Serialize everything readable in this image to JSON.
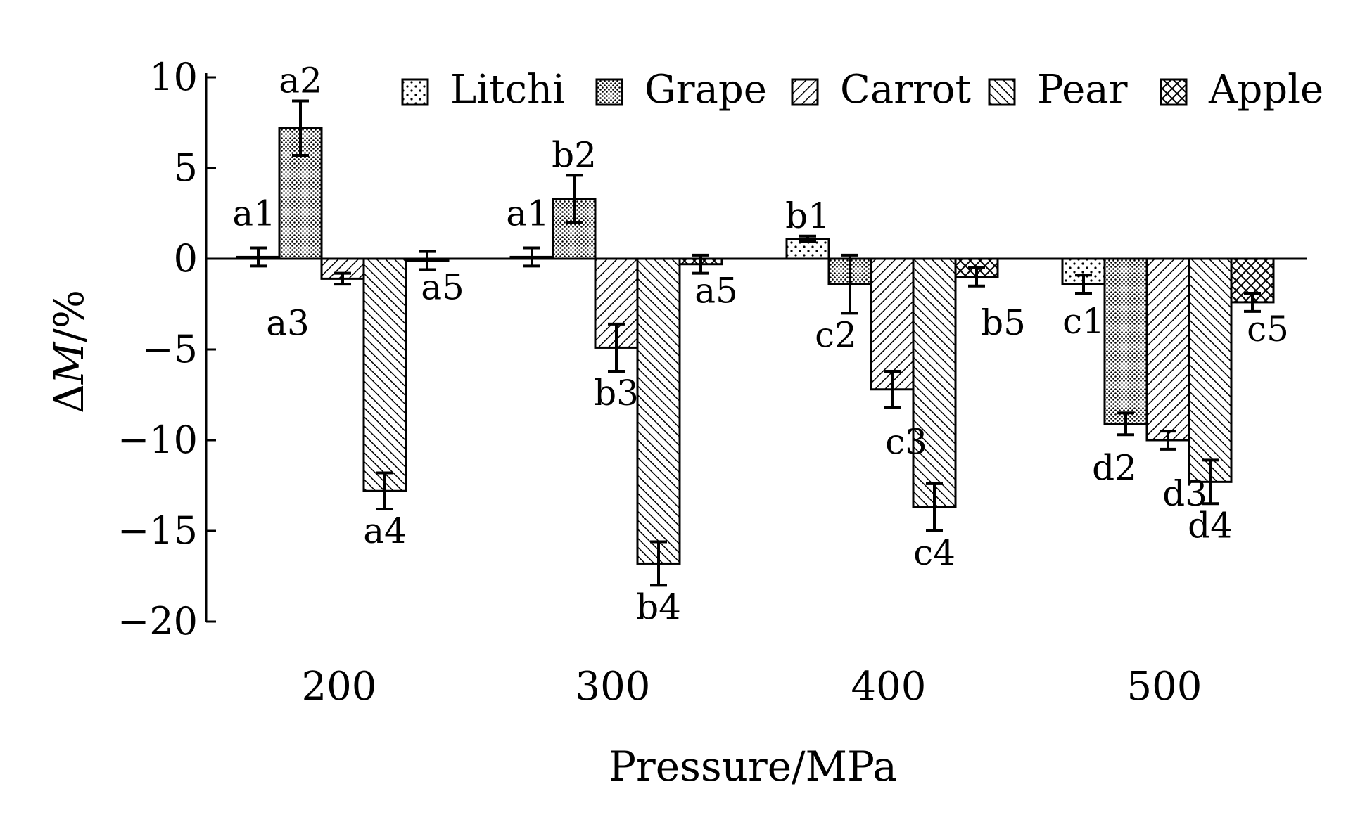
{
  "chart_data": {
    "type": "bar",
    "xlabel": "Pressure/MPa",
    "ylabel": {
      "prefix": "Δ",
      "variable": "M",
      "unit": "/%"
    },
    "ylim": [
      -20,
      10
    ],
    "yticks": [
      10,
      5,
      0,
      -5,
      -10,
      -15,
      -20
    ],
    "categories": [
      "200",
      "300",
      "400",
      "500"
    ],
    "legend_position": "top",
    "grid": false,
    "series": [
      {
        "name": "Litchi",
        "pattern": "dots",
        "values": [
          0.1,
          0.1,
          1.1,
          -1.4
        ],
        "errors": [
          0.5,
          0.5,
          0.15,
          0.5
        ],
        "labels": [
          "a1",
          "a1",
          "b1",
          "c1"
        ]
      },
      {
        "name": "Grape",
        "pattern": "dense-dots",
        "values": [
          7.2,
          3.3,
          -1.4,
          -9.1
        ],
        "errors": [
          1.5,
          1.3,
          1.6,
          0.6
        ],
        "labels": [
          "a2",
          "b2",
          "c2",
          "d2"
        ]
      },
      {
        "name": "Carrot",
        "pattern": "diagonal-forward",
        "values": [
          -1.1,
          -4.9,
          -7.2,
          -10.0
        ],
        "errors": [
          0.3,
          1.3,
          1.0,
          0.5
        ],
        "labels": [
          "a3",
          "b3",
          "c3",
          "d3"
        ]
      },
      {
        "name": "Pear",
        "pattern": "diagonal-back",
        "values": [
          -12.8,
          -16.8,
          -13.7,
          -12.3
        ],
        "errors": [
          1.0,
          1.2,
          1.3,
          1.2
        ],
        "labels": [
          "a4",
          "b4",
          "c4",
          "d4"
        ]
      },
      {
        "name": "Apple",
        "pattern": "crosshatch",
        "values": [
          -0.1,
          -0.3,
          -1.0,
          -2.4
        ],
        "errors": [
          0.5,
          0.5,
          0.5,
          0.5
        ],
        "labels": [
          "a5",
          "a5",
          "b5",
          "c5"
        ]
      }
    ]
  }
}
